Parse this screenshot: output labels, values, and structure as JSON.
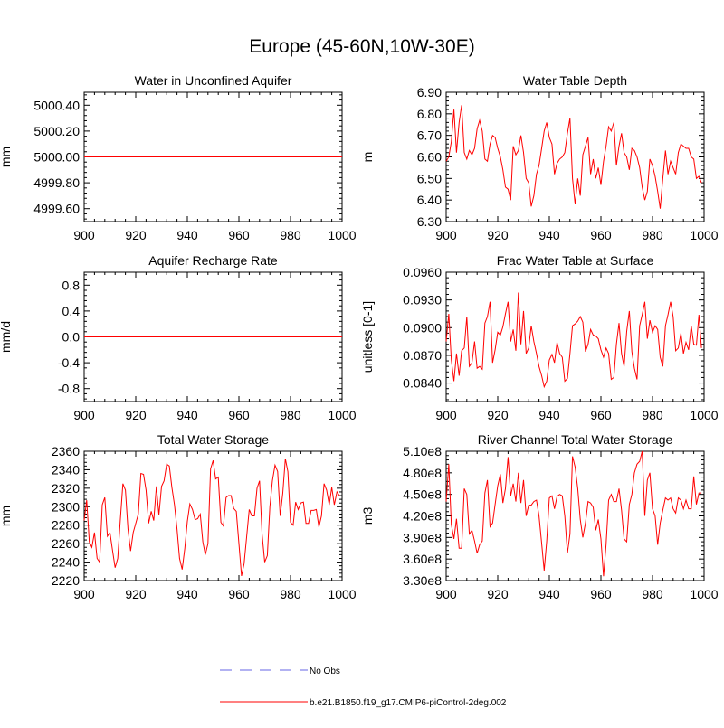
{
  "figure": {
    "title": "Europe (45-60N,10W-30E)"
  },
  "legend": {
    "entries": [
      {
        "label": "No Obs",
        "color": "#9999ee",
        "style": "dashed"
      },
      {
        "label": "b.e21.B1850.f19_g17.CMIP6-piControl-2deg.002",
        "color": "#ff0000",
        "style": "solid"
      }
    ]
  },
  "chart_data": [
    {
      "type": "line",
      "title": "Water in Unconfined Aquifer",
      "xlabel": "",
      "ylabel": "mm",
      "xlim": [
        900,
        1000
      ],
      "ylim": [
        4999.5,
        5000.5
      ],
      "xticks": [
        900,
        920,
        940,
        960,
        980,
        1000
      ],
      "xtick_labels": [
        "900",
        "920",
        "940",
        "960",
        "980",
        "1000"
      ],
      "yticks": [
        4999.6,
        4999.8,
        5000.0,
        5000.2,
        5000.4
      ],
      "ytick_labels": [
        "4999.60",
        "4999.80",
        "5000.00",
        "5000.20",
        "5000.40"
      ],
      "x": [
        900,
        1000
      ],
      "series": [
        {
          "color": "#ff0000",
          "values": [
            5000.0,
            5000.0
          ]
        }
      ]
    },
    {
      "type": "line",
      "title": "Water Table Depth",
      "xlabel": "",
      "ylabel": "m",
      "xlim": [
        900,
        1000
      ],
      "ylim": [
        6.3,
        6.9
      ],
      "xticks": [
        900,
        920,
        940,
        960,
        980,
        1000
      ],
      "xtick_labels": [
        "900",
        "920",
        "940",
        "960",
        "980",
        "1000"
      ],
      "yticks": [
        6.3,
        6.4,
        6.5,
        6.6,
        6.7,
        6.8,
        6.9
      ],
      "ytick_labels": [
        "6.30",
        "6.40",
        "6.50",
        "6.60",
        "6.70",
        "6.80",
        "6.90"
      ],
      "x": [
        900,
        901,
        902,
        903,
        904,
        905,
        906,
        907,
        908,
        909,
        910,
        911,
        912,
        913,
        914,
        915,
        916,
        917,
        918,
        919,
        920,
        921,
        922,
        923,
        924,
        925,
        926,
        927,
        928,
        929,
        930,
        931,
        932,
        933,
        934,
        935,
        936,
        937,
        938,
        939,
        940,
        941,
        942,
        943,
        944,
        945,
        946,
        947,
        948,
        949,
        950,
        951,
        952,
        953,
        954,
        955,
        956,
        957,
        958,
        959,
        960,
        961,
        962,
        963,
        964,
        965,
        966,
        967,
        968,
        969,
        970,
        971,
        972,
        973,
        974,
        975,
        976,
        977,
        978,
        979,
        980,
        981,
        982,
        983,
        984,
        985,
        986,
        987,
        988,
        989,
        990,
        991,
        992,
        993,
        994,
        995,
        996,
        997,
        998,
        999
      ],
      "series": [
        {
          "color": "#ff0000",
          "values": [
            6.58,
            6.6,
            6.67,
            6.82,
            6.62,
            6.76,
            6.84,
            6.62,
            6.59,
            6.63,
            6.61,
            6.64,
            6.73,
            6.77,
            6.72,
            6.59,
            6.58,
            6.66,
            6.7,
            6.69,
            6.64,
            6.6,
            6.54,
            6.46,
            6.45,
            6.4,
            6.65,
            6.61,
            6.63,
            6.7,
            6.62,
            6.5,
            6.48,
            6.37,
            6.42,
            6.52,
            6.56,
            6.64,
            6.72,
            6.76,
            6.69,
            6.66,
            6.52,
            6.57,
            6.59,
            6.6,
            6.62,
            6.71,
            6.78,
            6.5,
            6.38,
            6.5,
            6.42,
            6.61,
            6.65,
            6.69,
            6.52,
            6.59,
            6.5,
            6.55,
            6.47,
            6.58,
            6.65,
            6.74,
            6.72,
            6.76,
            6.56,
            6.65,
            6.71,
            6.62,
            6.6,
            6.54,
            6.64,
            6.63,
            6.6,
            6.55,
            6.46,
            6.4,
            6.44,
            6.59,
            6.56,
            6.51,
            6.44,
            6.36,
            6.5,
            6.63,
            6.52,
            6.58,
            6.55,
            6.52,
            6.62,
            6.66,
            6.65,
            6.64,
            6.64,
            6.6,
            6.59,
            6.5,
            6.51,
            6.48
          ]
        }
      ]
    },
    {
      "type": "line",
      "title": "Aquifer Recharge Rate",
      "xlabel": "",
      "ylabel": "mm/d",
      "xlim": [
        900,
        1000
      ],
      "ylim": [
        -1.0,
        1.0
      ],
      "xticks": [
        900,
        920,
        940,
        960,
        980,
        1000
      ],
      "xtick_labels": [
        "900",
        "920",
        "940",
        "960",
        "980",
        "1000"
      ],
      "yticks": [
        -0.8,
        -0.4,
        0.0,
        0.4,
        0.8
      ],
      "ytick_labels": [
        "-0.8",
        "-0.4",
        "0.0",
        "0.4",
        "0.8"
      ],
      "x": [
        900,
        1000
      ],
      "series": [
        {
          "color": "#ff0000",
          "values": [
            0.0,
            0.0
          ]
        }
      ]
    },
    {
      "type": "line",
      "title": "Frac Water Table at Surface",
      "xlabel": "",
      "ylabel": "unitless [0-1]",
      "xlim": [
        900,
        1000
      ],
      "ylim": [
        0.082,
        0.096
      ],
      "xticks": [
        900,
        920,
        940,
        960,
        980,
        1000
      ],
      "xtick_labels": [
        "900",
        "920",
        "940",
        "960",
        "980",
        "1000"
      ],
      "yticks": [
        0.084,
        0.087,
        0.09,
        0.093,
        0.096
      ],
      "ytick_labels": [
        "0.0840",
        "0.0870",
        "0.0900",
        "0.0930",
        "0.0960"
      ],
      "x": [
        900,
        901,
        902,
        903,
        904,
        905,
        906,
        907,
        908,
        909,
        910,
        911,
        912,
        913,
        914,
        915,
        916,
        917,
        918,
        919,
        920,
        921,
        922,
        923,
        924,
        925,
        926,
        927,
        928,
        929,
        930,
        931,
        932,
        933,
        934,
        935,
        936,
        937,
        938,
        939,
        940,
        941,
        942,
        943,
        944,
        945,
        946,
        947,
        948,
        949,
        950,
        951,
        952,
        953,
        954,
        955,
        956,
        957,
        958,
        959,
        960,
        961,
        962,
        963,
        964,
        965,
        966,
        967,
        968,
        969,
        970,
        971,
        972,
        973,
        974,
        975,
        976,
        977,
        978,
        979,
        980,
        981,
        982,
        983,
        984,
        985,
        986,
        987,
        988,
        989,
        990,
        991,
        992,
        993,
        994,
        995,
        996,
        997,
        998,
        999
      ],
      "series": [
        {
          "color": "#ff0000",
          "values": [
            0.0885,
            0.0915,
            0.0865,
            0.0842,
            0.0872,
            0.0848,
            0.0875,
            0.0878,
            0.0912,
            0.0858,
            0.0862,
            0.0885,
            0.0856,
            0.0858,
            0.0855,
            0.0905,
            0.0912,
            0.0928,
            0.0862,
            0.0876,
            0.0895,
            0.0892,
            0.0901,
            0.0915,
            0.0928,
            0.0885,
            0.0898,
            0.0875,
            0.0938,
            0.0882,
            0.0918,
            0.0872,
            0.0878,
            0.0902,
            0.0885,
            0.0872,
            0.0858,
            0.0848,
            0.0836,
            0.0842,
            0.0865,
            0.0871,
            0.0862,
            0.0884,
            0.0872,
            0.0868,
            0.0842,
            0.0845,
            0.0872,
            0.0902,
            0.0904,
            0.0907,
            0.0912,
            0.0906,
            0.0874,
            0.0882,
            0.0898,
            0.0892,
            0.0891,
            0.0888,
            0.0876,
            0.0868,
            0.0878,
            0.0872,
            0.0844,
            0.0846,
            0.0882,
            0.0905,
            0.0872,
            0.0858,
            0.0896,
            0.0918,
            0.0874,
            0.0856,
            0.0844,
            0.0902,
            0.0914,
            0.0928,
            0.0888,
            0.0908,
            0.0895,
            0.0902,
            0.0898,
            0.0868,
            0.0858,
            0.0902,
            0.0914,
            0.0928,
            0.0912,
            0.0875,
            0.0878,
            0.0894,
            0.0872,
            0.0884,
            0.0876,
            0.0902,
            0.0882,
            0.0881,
            0.0914,
            0.0878
          ]
        }
      ]
    },
    {
      "type": "line",
      "title": "Total Water Storage",
      "xlabel": "",
      "ylabel": "mm",
      "xlim": [
        900,
        1000
      ],
      "ylim": [
        2220,
        2360
      ],
      "xticks": [
        900,
        920,
        940,
        960,
        980,
        1000
      ],
      "xtick_labels": [
        "900",
        "920",
        "940",
        "960",
        "980",
        "1000"
      ],
      "yticks": [
        2220,
        2240,
        2260,
        2280,
        2300,
        2320,
        2340,
        2360
      ],
      "ytick_labels": [
        "2220",
        "2240",
        "2260",
        "2280",
        "2300",
        "2320",
        "2340",
        "2360"
      ],
      "x": [
        900,
        901,
        902,
        903,
        904,
        905,
        906,
        907,
        908,
        909,
        910,
        911,
        912,
        913,
        914,
        915,
        916,
        917,
        918,
        919,
        920,
        921,
        922,
        923,
        924,
        925,
        926,
        927,
        928,
        929,
        930,
        931,
        932,
        933,
        934,
        935,
        936,
        937,
        938,
        939,
        940,
        941,
        942,
        943,
        944,
        945,
        946,
        947,
        948,
        949,
        950,
        951,
        952,
        953,
        954,
        955,
        956,
        957,
        958,
        959,
        960,
        961,
        962,
        963,
        964,
        965,
        966,
        967,
        968,
        969,
        970,
        971,
        972,
        973,
        974,
        975,
        976,
        977,
        978,
        979,
        980,
        981,
        982,
        983,
        984,
        985,
        986,
        987,
        988,
        989,
        990,
        991,
        992,
        993,
        994,
        995,
        996,
        997,
        998,
        999
      ],
      "series": [
        {
          "color": "#ff0000",
          "values": [
            2285,
            2307,
            2262,
            2256,
            2272,
            2244,
            2240,
            2302,
            2310,
            2268,
            2272,
            2253,
            2234,
            2244,
            2285,
            2325,
            2318,
            2276,
            2252,
            2272,
            2282,
            2292,
            2336,
            2335,
            2318,
            2282,
            2295,
            2285,
            2322,
            2291,
            2322,
            2328,
            2346,
            2344,
            2321,
            2302,
            2276,
            2244,
            2232,
            2255,
            2284,
            2303,
            2297,
            2286,
            2287,
            2292,
            2262,
            2248,
            2260,
            2341,
            2350,
            2330,
            2332,
            2283,
            2279,
            2310,
            2312,
            2312,
            2298,
            2295,
            2260,
            2225,
            2238,
            2268,
            2297,
            2290,
            2290,
            2320,
            2328,
            2270,
            2240,
            2247,
            2300,
            2328,
            2345,
            2338,
            2290,
            2315,
            2352,
            2338,
            2283,
            2280,
            2305,
            2297,
            2304,
            2305,
            2282,
            2282,
            2296,
            2296,
            2297,
            2278,
            2290,
            2325,
            2318,
            2302,
            2321,
            2302,
            2316,
            2312
          ]
        }
      ]
    },
    {
      "type": "line",
      "title": "River Channel Total Water Storage",
      "xlabel": "",
      "ylabel": "m3",
      "xlim": [
        900,
        1000
      ],
      "ylim": [
        330000000,
        510000000
      ],
      "xticks": [
        900,
        920,
        940,
        960,
        980,
        1000
      ],
      "xtick_labels": [
        "900",
        "920",
        "940",
        "960",
        "980",
        "1000"
      ],
      "yticks": [
        330000000,
        360000000,
        390000000,
        420000000,
        450000000,
        480000000,
        510000000
      ],
      "ytick_labels": [
        "3.30e8",
        "3.60e8",
        "3.90e8",
        "4.20e8",
        "4.50e8",
        "4.80e8",
        "5.10e8"
      ],
      "x": [
        900,
        901,
        902,
        903,
        904,
        905,
        906,
        907,
        908,
        909,
        910,
        911,
        912,
        913,
        914,
        915,
        916,
        917,
        918,
        919,
        920,
        921,
        922,
        923,
        924,
        925,
        926,
        927,
        928,
        929,
        930,
        931,
        932,
        933,
        934,
        935,
        936,
        937,
        938,
        939,
        940,
        941,
        942,
        943,
        944,
        945,
        946,
        947,
        948,
        949,
        950,
        951,
        952,
        953,
        954,
        955,
        956,
        957,
        958,
        959,
        960,
        961,
        962,
        963,
        964,
        965,
        966,
        967,
        968,
        969,
        970,
        971,
        972,
        973,
        974,
        975,
        976,
        977,
        978,
        979,
        980,
        981,
        982,
        983,
        984,
        985,
        986,
        987,
        988,
        989,
        990,
        991,
        992,
        993,
        994,
        995,
        996,
        997,
        998,
        999
      ],
      "series": [
        {
          "color": "#ff0000",
          "values": [
            440000000,
            492000000,
            408000000,
            388000000,
            416000000,
            375000000,
            375000000,
            458000000,
            450000000,
            395000000,
            400000000,
            385000000,
            368000000,
            380000000,
            385000000,
            452000000,
            470000000,
            405000000,
            410000000,
            436000000,
            462000000,
            478000000,
            438000000,
            458000000,
            502000000,
            448000000,
            465000000,
            440000000,
            480000000,
            438000000,
            470000000,
            420000000,
            435000000,
            435000000,
            440000000,
            442000000,
            420000000,
            382000000,
            344000000,
            385000000,
            445000000,
            448000000,
            430000000,
            447000000,
            450000000,
            448000000,
            420000000,
            368000000,
            395000000,
            503000000,
            488000000,
            458000000,
            415000000,
            390000000,
            410000000,
            440000000,
            438000000,
            432000000,
            400000000,
            415000000,
            388000000,
            336000000,
            380000000,
            442000000,
            450000000,
            440000000,
            440000000,
            458000000,
            428000000,
            388000000,
            384000000,
            436000000,
            450000000,
            480000000,
            492000000,
            496000000,
            510000000,
            420000000,
            470000000,
            480000000,
            430000000,
            420000000,
            380000000,
            410000000,
            428000000,
            445000000,
            442000000,
            445000000,
            430000000,
            424000000,
            445000000,
            442000000,
            430000000,
            442000000,
            430000000,
            430000000,
            475000000,
            436000000,
            452000000,
            452000000
          ]
        }
      ]
    }
  ]
}
